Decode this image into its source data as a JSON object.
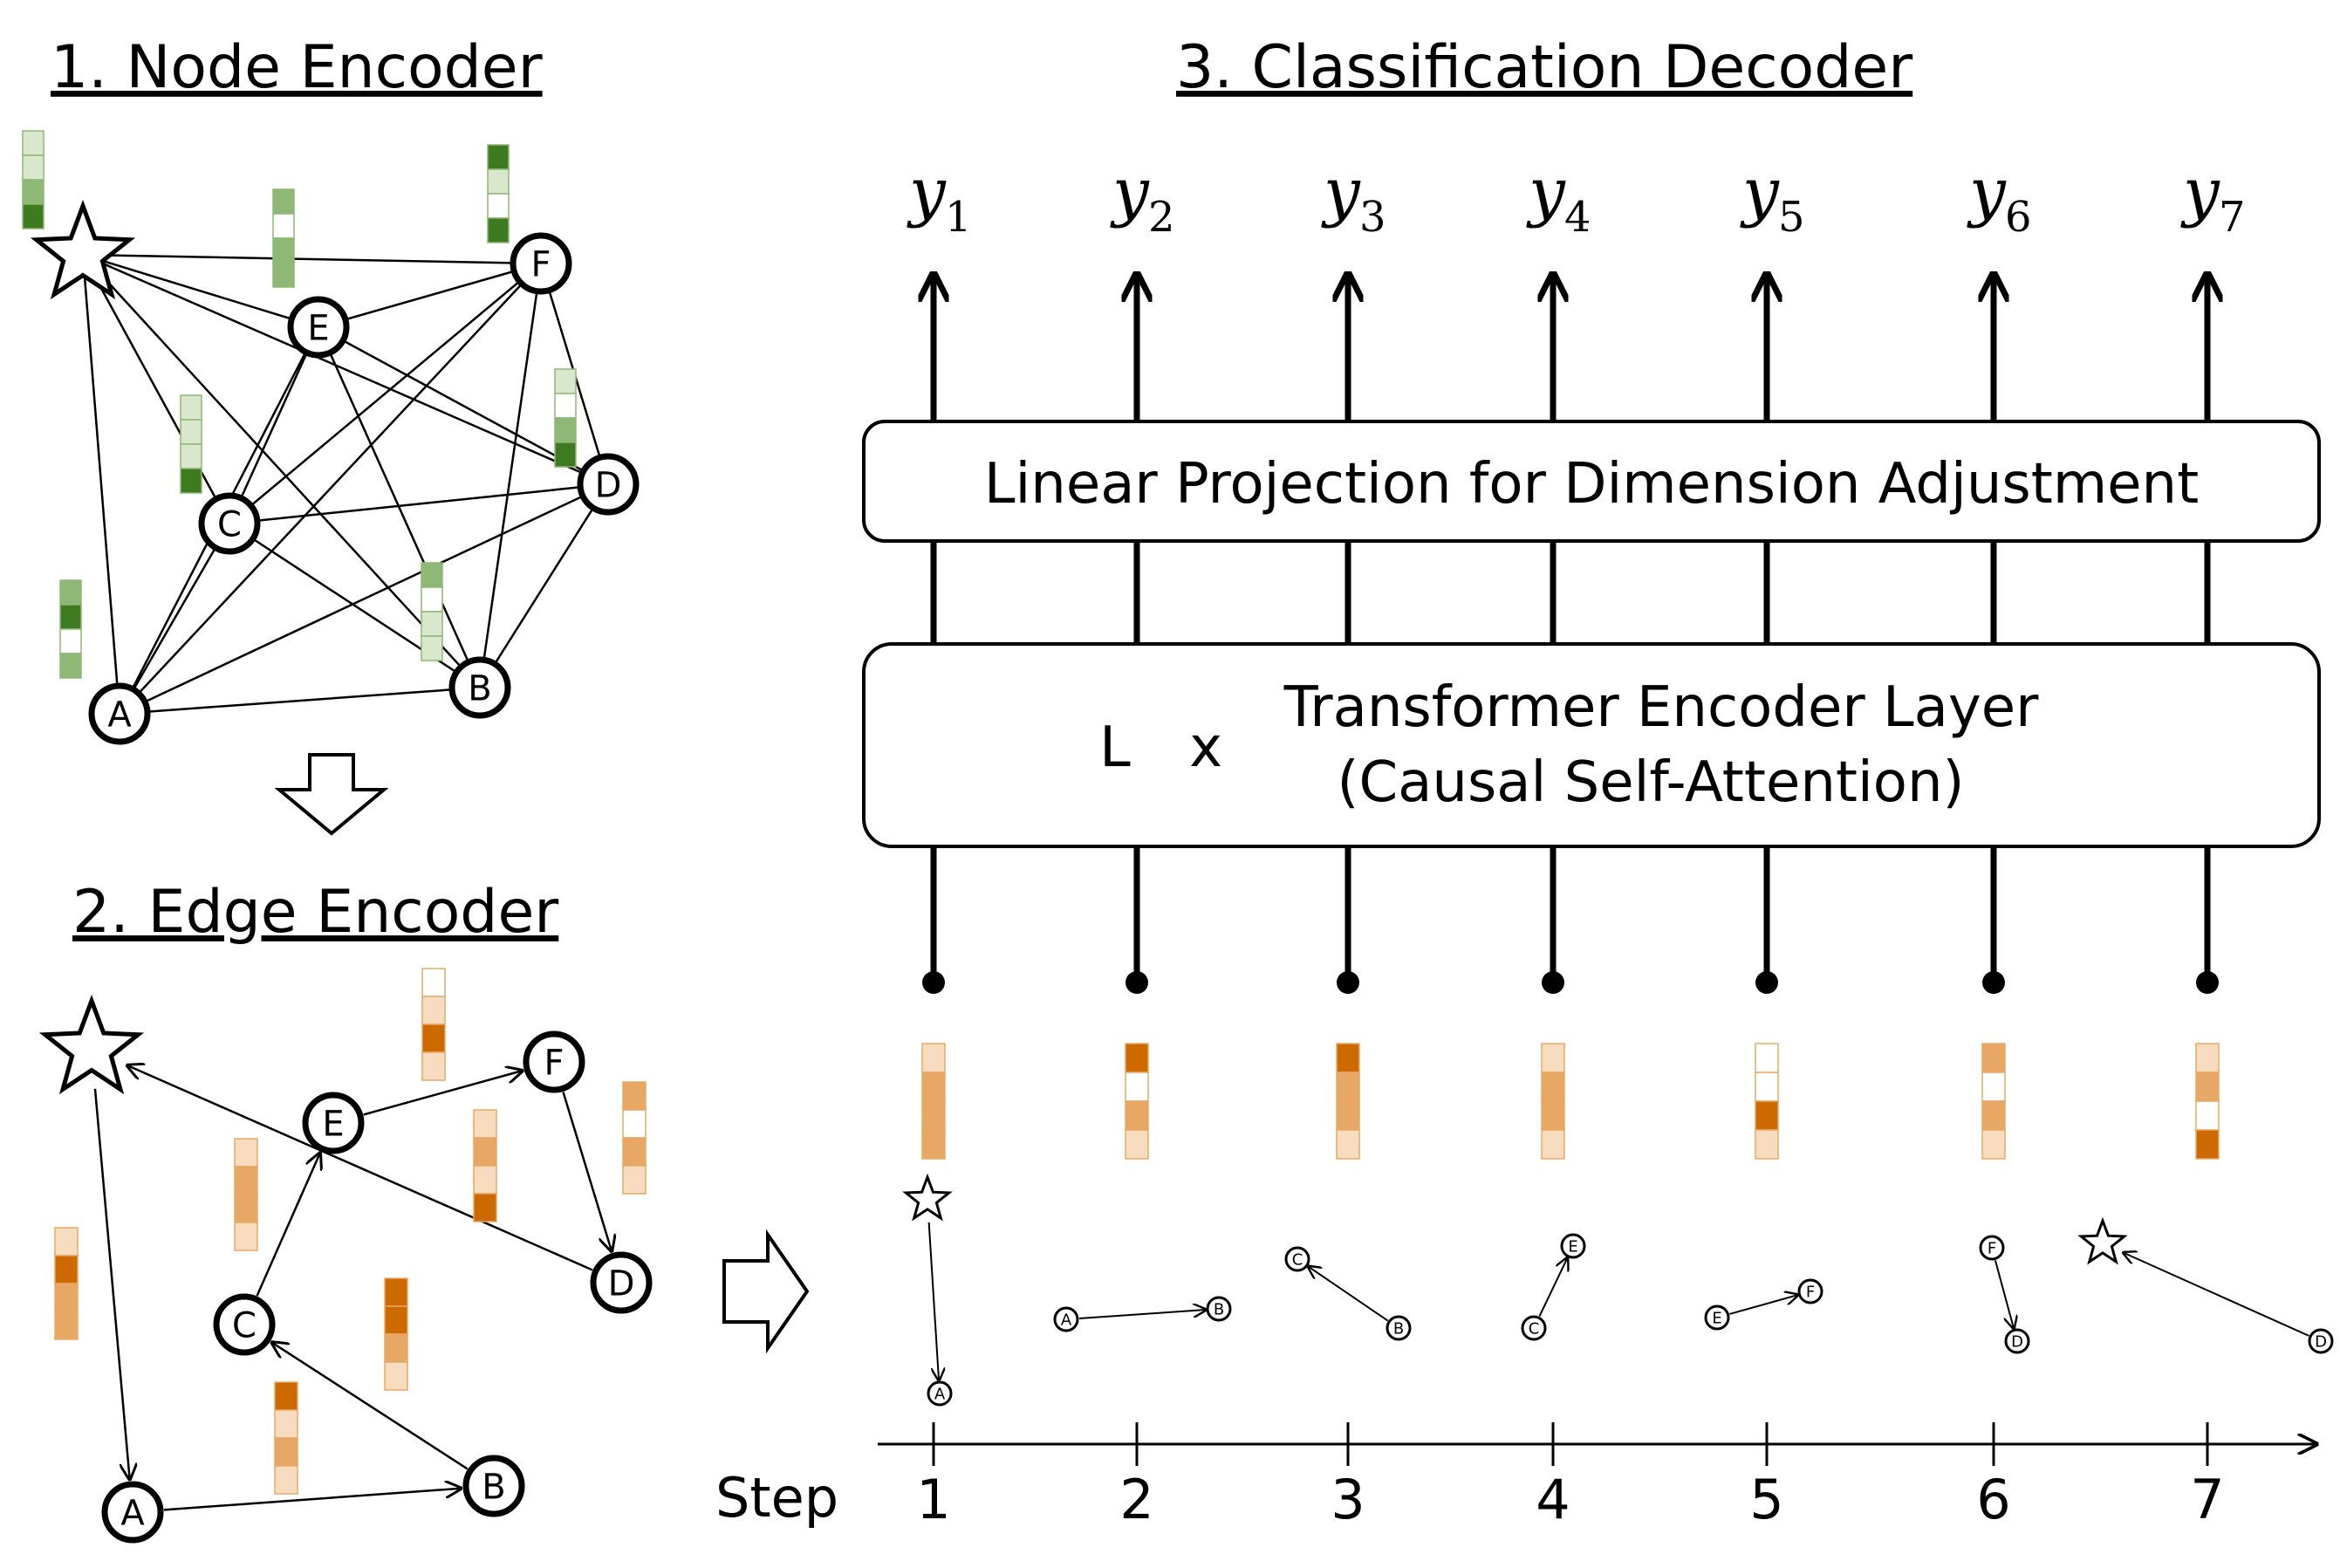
{
  "titles": {
    "node_encoder": "1. Node Encoder",
    "edge_encoder": "2. Edge Encoder",
    "classification_decoder": "3. Classification Decoder"
  },
  "graph_node_labels": [
    "A",
    "B",
    "C",
    "D",
    "E",
    "F"
  ],
  "decoder": {
    "projection_label": "Linear Projection for Dimension Adjustment",
    "transformer_repeat": "L",
    "transformer_times": "x",
    "transformer_line1": "Transformer Encoder Layer",
    "transformer_line2": "(Causal Self-Attention)",
    "output_symbol": "y",
    "outputs": [
      "1",
      "2",
      "3",
      "4",
      "5",
      "6",
      "7"
    ]
  },
  "step_axis": {
    "label": "Step",
    "ticks": [
      "1",
      "2",
      "3",
      "4",
      "5",
      "6",
      "7"
    ]
  },
  "edge_sequence": [
    {
      "step": 1,
      "from": "☆",
      "to": "A"
    },
    {
      "step": 2,
      "from": "A",
      "to": "B"
    },
    {
      "step": 3,
      "from": "B",
      "to": "C"
    },
    {
      "step": 4,
      "from": "C",
      "to": "E"
    },
    {
      "step": 5,
      "from": "E",
      "to": "F"
    },
    {
      "step": 6,
      "from": "F",
      "to": "D"
    },
    {
      "step": 7,
      "from": "D",
      "to": "☆"
    }
  ],
  "colors": {
    "green_dark": "#3e7a1f",
    "green_mid": "#8fb776",
    "green_light": "#d9e8cc",
    "orange_dark": "#cc6a00",
    "orange_mid": "#e8a865",
    "orange_light": "#f8dcc0",
    "node_edge": "#000000"
  }
}
